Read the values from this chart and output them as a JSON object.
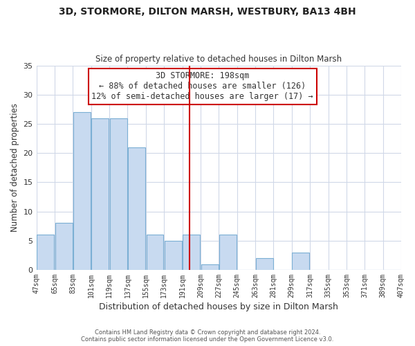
{
  "title": "3D, STORMORE, DILTON MARSH, WESTBURY, BA13 4BH",
  "subtitle": "Size of property relative to detached houses in Dilton Marsh",
  "xlabel": "Distribution of detached houses by size in Dilton Marsh",
  "ylabel": "Number of detached properties",
  "bar_color": "#c8daf0",
  "bar_edge_color": "#7bafd4",
  "bins": [
    47,
    65,
    83,
    101,
    119,
    137,
    155,
    173,
    191,
    209,
    227,
    245,
    263,
    281,
    299,
    317,
    335,
    353,
    371,
    389,
    407
  ],
  "counts": [
    6,
    8,
    27,
    26,
    26,
    21,
    6,
    5,
    6,
    1,
    6,
    0,
    2,
    0,
    3,
    0,
    0,
    0,
    0,
    0
  ],
  "property_value": 198,
  "vline_color": "#cc0000",
  "annotation_box_edge": "#cc0000",
  "annotation_line1": "3D STORMORE: 198sqm",
  "annotation_line2": "← 88% of detached houses are smaller (126)",
  "annotation_line3": "12% of semi-detached houses are larger (17) →",
  "ylim": [
    0,
    35
  ],
  "yticks": [
    0,
    5,
    10,
    15,
    20,
    25,
    30,
    35
  ],
  "tick_labels": [
    "47sqm",
    "65sqm",
    "83sqm",
    "101sqm",
    "119sqm",
    "137sqm",
    "155sqm",
    "173sqm",
    "191sqm",
    "209sqm",
    "227sqm",
    "245sqm",
    "263sqm",
    "281sqm",
    "299sqm",
    "317sqm",
    "335sqm",
    "353sqm",
    "371sqm",
    "389sqm",
    "407sqm"
  ],
  "footer_line1": "Contains HM Land Registry data © Crown copyright and database right 2024.",
  "footer_line2": "Contains public sector information licensed under the Open Government Licence v3.0.",
  "background_color": "#ffffff",
  "grid_color": "#d0d8e8"
}
